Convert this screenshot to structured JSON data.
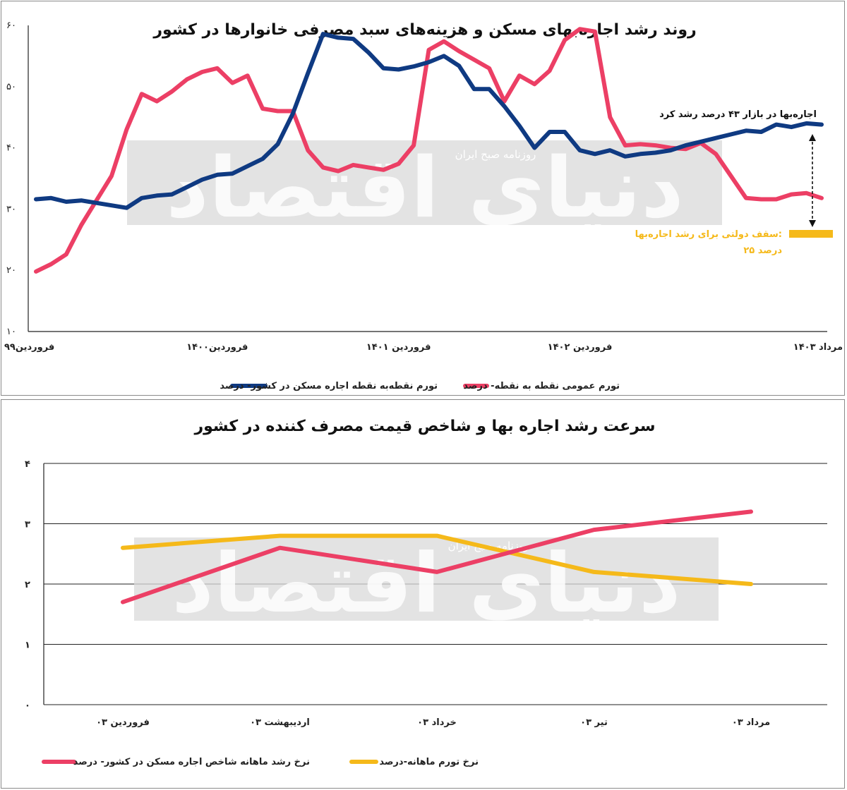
{
  "colors": {
    "blue": "#0f3a82",
    "red": "#ec3f65",
    "yellow": "#f5b91a",
    "watermark": "#d9d9d9"
  },
  "chart_data": [
    {
      "type": "line",
      "title": "روند رشد اجاره‌بهای مسکن و هزینه‌های سبد مصرفی خانوارها در کشور",
      "ylim": [
        10,
        60
      ],
      "yticks": [
        "۱۰",
        "۲۰",
        "۳۰",
        "۴۰",
        "۵۰",
        "۶۰"
      ],
      "ytick_values": [
        10,
        20,
        30,
        40,
        50,
        60
      ],
      "xlim": [
        0,
        52
      ],
      "xticks": [
        {
          "x": 0,
          "label": "فروردین۹۹"
        },
        {
          "x": 12,
          "label": "فروردین۱۴۰۰"
        },
        {
          "x": 24,
          "label": "فروردین ۱۴۰۱"
        },
        {
          "x": 36,
          "label": "فروردین ۱۴۰۲"
        },
        {
          "x": 52,
          "label": "مرداد ۱۴۰۳"
        }
      ],
      "grid": false,
      "legend_position": "bottom",
      "series": [
        {
          "name": "تورم نقطه‌به نقطه اجاره مسکن در کشور- درصد",
          "color": "#0f3a82",
          "x": [
            0,
            1,
            2,
            3,
            4,
            5,
            6,
            7,
            8,
            9,
            10,
            11,
            12,
            13,
            14,
            15,
            16,
            17,
            18,
            19,
            20,
            21,
            22,
            23,
            24,
            25,
            26,
            27,
            28,
            29,
            30,
            31,
            32,
            33,
            34,
            35,
            36,
            37,
            38,
            39,
            40,
            41,
            42,
            43,
            44,
            45,
            46,
            47,
            48,
            49,
            50,
            51,
            52
          ],
          "values": [
            31.6,
            31.8,
            31.2,
            31.4,
            31.0,
            30.6,
            30.2,
            31.8,
            32.2,
            32.4,
            33.6,
            34.8,
            35.6,
            35.8,
            37.0,
            38.2,
            40.6,
            45.6,
            52.2,
            58.6,
            58.0,
            57.8,
            55.6,
            53.0,
            52.8,
            53.3,
            54.0,
            55.0,
            53.4,
            49.6,
            49.6,
            46.8,
            43.6,
            40.0,
            42.6,
            42.6,
            39.6,
            39.0,
            39.6,
            38.6,
            39.0,
            39.2,
            39.6,
            40.4,
            41.0,
            41.6,
            42.2,
            42.8,
            42.6,
            43.8,
            43.4,
            44.0,
            43.8
          ]
        },
        {
          "name": "تورم عمومی نقطه به نقطه- درصد",
          "color": "#ec3f65",
          "x": [
            0,
            1,
            2,
            3,
            4,
            5,
            6,
            7,
            8,
            9,
            10,
            11,
            12,
            13,
            14,
            15,
            16,
            17,
            18,
            19,
            20,
            21,
            22,
            23,
            24,
            25,
            26,
            27,
            28,
            29,
            30,
            31,
            32,
            33,
            34,
            35,
            36,
            37,
            38,
            39,
            40,
            41,
            42,
            43,
            44,
            45,
            46,
            47,
            48,
            49,
            50,
            51,
            52
          ],
          "values": [
            19.8,
            21.0,
            22.6,
            27.4,
            31.4,
            35.4,
            43.0,
            48.8,
            47.6,
            49.2,
            51.2,
            52.4,
            53.0,
            50.6,
            51.8,
            46.4,
            46.0,
            46.0,
            39.6,
            36.8,
            36.2,
            37.2,
            36.8,
            36.4,
            37.4,
            40.4,
            56.0,
            57.4,
            55.8,
            54.4,
            53.0,
            47.6,
            51.8,
            50.4,
            52.6,
            57.6,
            59.4,
            59.0,
            45.0,
            40.4,
            40.6,
            40.4,
            40.0,
            39.8,
            40.8,
            39.0,
            35.4,
            31.8,
            31.6,
            31.6,
            32.4,
            32.6,
            31.8
          ]
        }
      ],
      "annotations": {
        "rent_growth": "اجاره‌بها در بازار ۴۳ درصد رشد کرد",
        "cap_label": "سقف دولتی برای رشد اجاره‌بها:",
        "cap_value": "۲۵ درصد"
      },
      "watermark": {
        "large": "دنیای اقتصاد",
        "small": "روزنامه صبح ایران"
      }
    },
    {
      "type": "line",
      "title": "سرعت رشد اجاره بها و شاخص قیمت مصرف کننده در کشور",
      "ylim": [
        0,
        4
      ],
      "yticks": [
        "۰",
        "۱",
        "۲",
        "۳",
        "۴"
      ],
      "ytick_values": [
        0,
        1,
        2,
        3,
        4
      ],
      "categories": [
        "فروردین ۰۳",
        "اردیبهشت ۰۳",
        "خرداد ۰۳",
        "تیر ۰۳",
        "مرداد ۰۳"
      ],
      "grid": true,
      "legend_position": "bottom",
      "series": [
        {
          "name": "نرخ رشد ماهانه شاخص اجاره مسکن در کشور- درصد",
          "color": "#ec3f65",
          "values": [
            1.7,
            2.6,
            2.2,
            2.9,
            3.2
          ]
        },
        {
          "name": "نرخ تورم ماهانه-درصد",
          "color": "#f5b91a",
          "values": [
            2.6,
            2.8,
            2.8,
            2.2,
            2.0
          ]
        }
      ],
      "watermark": {
        "large": "دنیای اقتصاد",
        "small": "روزنامه صبح ایران"
      }
    }
  ]
}
